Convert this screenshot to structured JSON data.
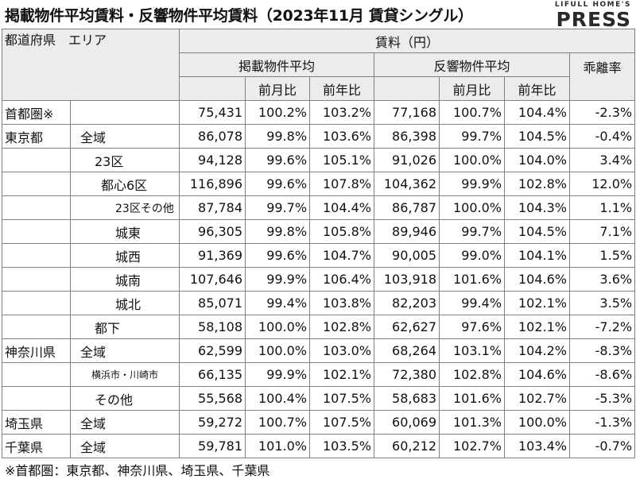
{
  "title": "掲載物件平均賃料・反響物件平均賃料（2023年11月 賃貸シングル）",
  "logo": {
    "line1": "LIFULL HOME'S",
    "line2": "PRESS"
  },
  "header": {
    "pref_area": "都道府県　エリア",
    "rent": "賃料（円）",
    "listed_avg": "掲載物件平均",
    "response_avg": "反響物件平均",
    "divergence": "乖離率",
    "mom": "前月比",
    "yoy": "前年比"
  },
  "rows": [
    {
      "pref": "首都圏※",
      "area": "",
      "listed": "75,431",
      "l_mom": "100.2%",
      "l_yoy": "103.2%",
      "resp": "77,168",
      "r_mom": "100.7%",
      "r_yoy": "104.4%",
      "div": "-2.3%"
    },
    {
      "pref": "東京都",
      "area": "全域",
      "listed": "86,078",
      "l_mom": "99.8%",
      "l_yoy": "103.6%",
      "resp": "86,398",
      "r_mom": "99.7%",
      "r_yoy": "104.5%",
      "div": "-0.4%"
    },
    {
      "pref": "",
      "area": "23区",
      "listed": "94,128",
      "l_mom": "99.6%",
      "l_yoy": "105.1%",
      "resp": "91,026",
      "r_mom": "100.0%",
      "r_yoy": "104.0%",
      "div": "3.4%"
    },
    {
      "pref": "",
      "area": "都心6区",
      "listed": "116,896",
      "l_mom": "99.6%",
      "l_yoy": "107.8%",
      "resp": "104,362",
      "r_mom": "99.9%",
      "r_yoy": "102.8%",
      "div": "12.0%"
    },
    {
      "pref": "",
      "area": "23区その他",
      "listed": "87,784",
      "l_mom": "99.7%",
      "l_yoy": "104.4%",
      "resp": "86,787",
      "r_mom": "100.0%",
      "r_yoy": "104.3%",
      "div": "1.1%"
    },
    {
      "pref": "",
      "area": "城東",
      "listed": "96,305",
      "l_mom": "99.8%",
      "l_yoy": "105.8%",
      "resp": "89,946",
      "r_mom": "99.7%",
      "r_yoy": "104.5%",
      "div": "7.1%"
    },
    {
      "pref": "",
      "area": "城西",
      "listed": "91,369",
      "l_mom": "99.6%",
      "l_yoy": "104.7%",
      "resp": "90,005",
      "r_mom": "99.0%",
      "r_yoy": "104.1%",
      "div": "1.5%"
    },
    {
      "pref": "",
      "area": "城南",
      "listed": "107,646",
      "l_mom": "99.9%",
      "l_yoy": "106.4%",
      "resp": "103,918",
      "r_mom": "101.6%",
      "r_yoy": "104.6%",
      "div": "3.6%"
    },
    {
      "pref": "",
      "area": "城北",
      "listed": "85,071",
      "l_mom": "99.4%",
      "l_yoy": "103.8%",
      "resp": "82,203",
      "r_mom": "99.4%",
      "r_yoy": "102.1%",
      "div": "3.5%"
    },
    {
      "pref": "",
      "area": "都下",
      "listed": "58,108",
      "l_mom": "100.0%",
      "l_yoy": "102.8%",
      "resp": "62,627",
      "r_mom": "97.6%",
      "r_yoy": "102.1%",
      "div": "-7.2%"
    },
    {
      "pref": "神奈川県",
      "area": "全域",
      "listed": "62,599",
      "l_mom": "100.0%",
      "l_yoy": "103.0%",
      "resp": "68,264",
      "r_mom": "103.1%",
      "r_yoy": "104.2%",
      "div": "-8.3%"
    },
    {
      "pref": "",
      "area": "横浜市・川崎市",
      "listed": "66,135",
      "l_mom": "99.9%",
      "l_yoy": "102.1%",
      "resp": "72,380",
      "r_mom": "102.8%",
      "r_yoy": "104.6%",
      "div": "-8.6%"
    },
    {
      "pref": "",
      "area": "その他",
      "listed": "55,568",
      "l_mom": "100.4%",
      "l_yoy": "107.5%",
      "resp": "58,683",
      "r_mom": "101.6%",
      "r_yoy": "102.7%",
      "div": "-5.3%"
    },
    {
      "pref": "埼玉県",
      "area": "全域",
      "listed": "59,272",
      "l_mom": "100.7%",
      "l_yoy": "107.5%",
      "resp": "60,069",
      "r_mom": "101.3%",
      "r_yoy": "100.0%",
      "div": "-1.3%"
    },
    {
      "pref": "千葉県",
      "area": "全域",
      "listed": "59,781",
      "l_mom": "101.0%",
      "l_yoy": "103.5%",
      "resp": "60,212",
      "r_mom": "102.7%",
      "r_yoy": "103.4%",
      "div": "-0.7%"
    }
  ],
  "footnote": "※首都圏：東京都、神奈川県、埼玉県、千葉県"
}
